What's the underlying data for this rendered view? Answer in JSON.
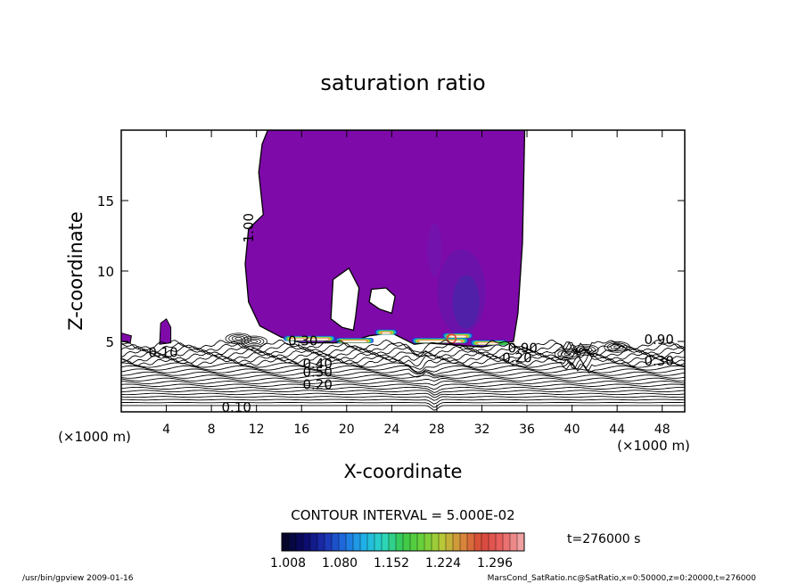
{
  "chart_data": {
    "type": "contour",
    "title": "saturation ratio",
    "xlabel": "X-coordinate",
    "ylabel": "Z-coordinate",
    "x_unit": "(×1000 m)",
    "y_unit": "(×1000 m)",
    "xlim": [
      0,
      50
    ],
    "ylim": [
      0,
      20
    ],
    "x_ticks": [
      4,
      8,
      12,
      16,
      20,
      24,
      28,
      32,
      36,
      40,
      44,
      48
    ],
    "y_ticks": [
      5,
      10,
      15
    ],
    "contour_labels": [
      {
        "text": "1.00",
        "x": 11.7,
        "y": 12.0,
        "rotate": -90
      },
      {
        "text": "0.10",
        "x": 2.4,
        "y": 3.9
      },
      {
        "text": "0.30",
        "x": 14.8,
        "y": 4.7
      },
      {
        "text": "0.40",
        "x": 16.1,
        "y": 3.1
      },
      {
        "text": "0.50",
        "x": 16.1,
        "y": 2.5
      },
      {
        "text": "0.20",
        "x": 16.1,
        "y": 1.6
      },
      {
        "text": "0.10",
        "x": 8.9,
        "y": 0.0
      },
      {
        "text": "0.20",
        "x": 33.8,
        "y": 3.5
      },
      {
        "text": "0.90",
        "x": 34.3,
        "y": 4.2
      },
      {
        "text": "0.90",
        "x": 46.4,
        "y": 4.8
      },
      {
        "text": "0.30",
        "x": 46.4,
        "y": 3.3
      }
    ],
    "contour_interval": "CONTOUR INTERVAL = 5.000E-02",
    "time_label": "t=276000 s",
    "colorbar": {
      "ticks": [
        "1.008",
        "1.080",
        "1.152",
        "1.224",
        "1.296"
      ],
      "colors": [
        "#05052a",
        "#0a0a6a",
        "#1c2fb0",
        "#1e6ee0",
        "#1fb0e8",
        "#2bd6c0",
        "#39c84a",
        "#6bd23a",
        "#b8c838",
        "#d88a3a",
        "#d8463a",
        "#e86060",
        "#f0a0a0"
      ]
    },
    "fill_color": "#7f0aaa"
  },
  "footer": {
    "left": "/usr/bin/gpview   2009-01-16",
    "right": "MarsCond_SatRatio.nc@SatRatio,x=0:50000,z=0:20000,t=276000"
  }
}
